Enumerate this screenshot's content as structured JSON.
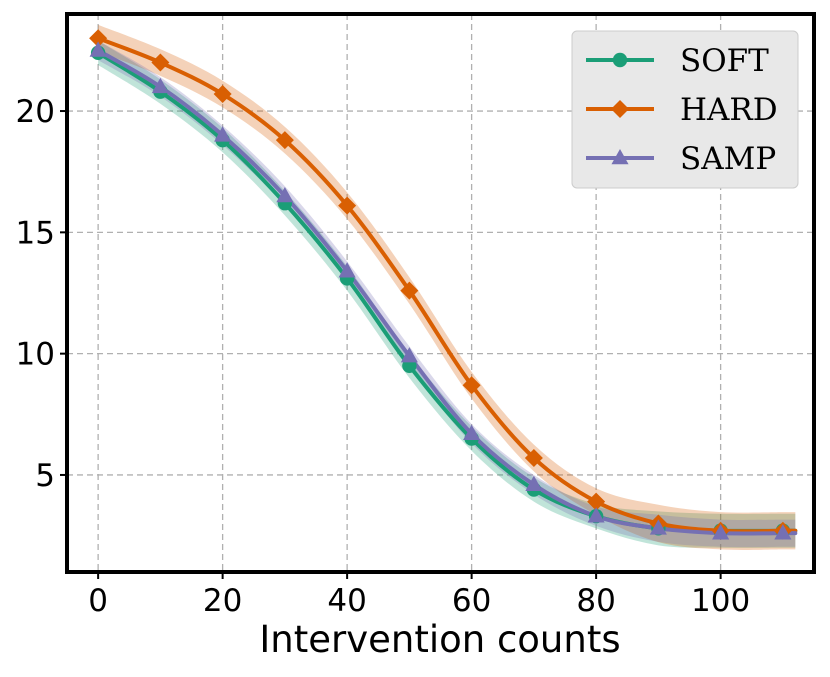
{
  "chart_data": {
    "type": "line",
    "title": "",
    "xlabel": "Intervention counts",
    "ylabel": "",
    "xlim": [
      -5,
      115
    ],
    "ylim": [
      1,
      24
    ],
    "xticks": [
      0,
      20,
      40,
      60,
      80,
      100
    ],
    "yticks": [
      5,
      10,
      15,
      20
    ],
    "grid": true,
    "legend_position": "top-right",
    "x": [
      0,
      10,
      20,
      30,
      40,
      50,
      60,
      70,
      80,
      90,
      100,
      110
    ],
    "series": [
      {
        "name": "SOFT",
        "color": "#1b9e77",
        "marker": "circle",
        "values": [
          22.4,
          20.8,
          18.8,
          16.2,
          13.1,
          9.5,
          6.5,
          4.4,
          3.3,
          2.8,
          2.7,
          2.7
        ],
        "band": 0.5
      },
      {
        "name": "HARD",
        "color": "#d95f02",
        "marker": "diamond",
        "values": [
          23.0,
          22.0,
          20.7,
          18.8,
          16.1,
          12.6,
          8.7,
          5.7,
          3.9,
          3.0,
          2.7,
          2.7
        ],
        "band": 0.55
      },
      {
        "name": "SAMP",
        "color": "#7570b3",
        "marker": "triangle",
        "values": [
          22.5,
          21.0,
          19.0,
          16.5,
          13.4,
          9.9,
          6.7,
          4.6,
          3.3,
          2.8,
          2.6,
          2.6
        ],
        "band": 0.4
      }
    ]
  }
}
